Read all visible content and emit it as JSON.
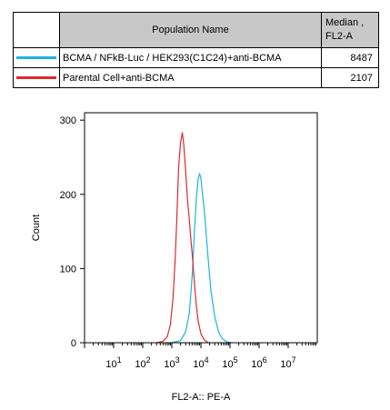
{
  "legend": {
    "header_name": "Population Name",
    "header_median": "Median ,",
    "header_median_param": "FL2-A",
    "rows": [
      {
        "name": "BCMA / NFkB-Luc / HEK293(C1C24)+anti-BCMA",
        "median": "8487",
        "color": "#1ab4e0"
      },
      {
        "name": "Parental Cell+anti-BCMA",
        "median": "2107",
        "color": "#e0282e"
      }
    ]
  },
  "chart_data": {
    "type": "line",
    "xlabel": "FL2-A:: PE-A",
    "ylabel": "Count",
    "x_scale": "log",
    "x_ticks": [
      "10^1",
      "10^2",
      "10^3",
      "10^4",
      "10^5",
      "10^6",
      "10^7"
    ],
    "y_ticks": [
      0,
      100,
      200,
      300
    ],
    "xlim": [
      "10^0",
      "10^8"
    ],
    "ylim": [
      0,
      310
    ],
    "series": [
      {
        "name": "BCMA / NFkB-Luc / HEK293(C1C24)+anti-BCMA",
        "color": "#1ab4e0",
        "x": [
          1000,
          2000,
          3000,
          4000,
          5000,
          6000,
          7000,
          8000,
          9000,
          10000,
          11000,
          13000,
          15000,
          18000,
          22000,
          30000,
          40000,
          55000,
          80000,
          110000
        ],
        "y": [
          0,
          3,
          15,
          40,
          90,
          150,
          195,
          220,
          228,
          222,
          205,
          180,
          150,
          110,
          70,
          35,
          15,
          5,
          1,
          0
        ]
      },
      {
        "name": "Parental Cell+anti-BCMA",
        "color": "#e0282e",
        "x": [
          300,
          500,
          700,
          900,
          1100,
          1300,
          1500,
          1700,
          2000,
          2300,
          2600,
          3000,
          3500,
          4000,
          4500,
          5000,
          6000,
          7000,
          8000,
          10000,
          13000,
          18000
        ],
        "y": [
          0,
          2,
          8,
          25,
          60,
          110,
          170,
          235,
          270,
          283,
          265,
          230,
          190,
          165,
          140,
          120,
          80,
          50,
          30,
          12,
          4,
          0
        ]
      }
    ]
  }
}
